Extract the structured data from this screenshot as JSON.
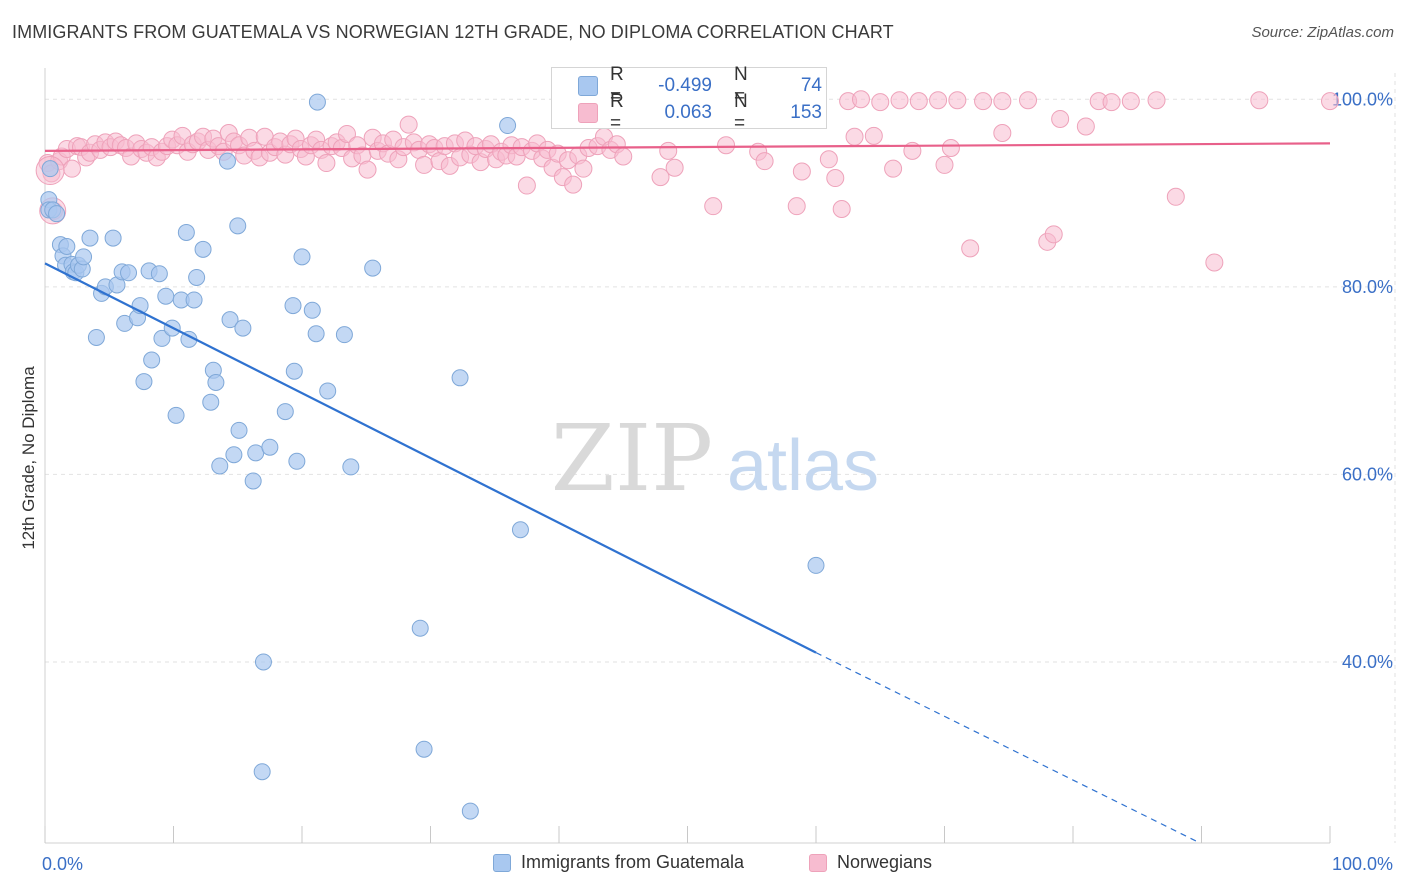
{
  "header": {
    "title": "IMMIGRANTS FROM GUATEMALA VS NORWEGIAN 12TH GRADE, NO DIPLOMA CORRELATION CHART",
    "source": "Source: ZipAtlas.com"
  },
  "watermark": {
    "zip": "ZIP",
    "atlas": "atlas"
  },
  "stats": {
    "series1": {
      "r_label": "R =",
      "r_value": "-0.499",
      "n_label": "N =",
      "n_value": "74"
    },
    "series2": {
      "r_label": "R =",
      "r_value": "0.063",
      "n_label": "N =",
      "n_value": "153"
    }
  },
  "legend": {
    "series1": "Immigrants from Guatemala",
    "series2": "Norwegians"
  },
  "colors": {
    "blue_fill": "#a9c8f0",
    "blue_stroke": "#7fa8d8",
    "blue_line": "#2f72d0",
    "pink_fill": "#f7bcd0",
    "pink_stroke": "#eea2ba",
    "pink_line": "#e8608a",
    "tick_label": "#3a6fc6",
    "grid": "#e2e2e2"
  },
  "chart_data": {
    "type": "scatter",
    "title": "IMMIGRANTS FROM GUATEMALA VS NORWEGIAN 12TH GRADE, NO DIPLOMA CORRELATION CHART",
    "xlabel": "",
    "ylabel": "12th Grade, No Diploma",
    "xlim": [
      0,
      100
    ],
    "ylim": [
      20.7,
      102.8
    ],
    "x_tick_labels": [
      {
        "value": 0,
        "label": "0.0%"
      },
      {
        "value": 100,
        "label": "100.0%"
      }
    ],
    "y_tick_labels": [
      {
        "value": 40,
        "label": "40.0%"
      },
      {
        "value": 60,
        "label": "60.0%"
      },
      {
        "value": 80,
        "label": "80.0%"
      },
      {
        "value": 100,
        "label": "100.0%"
      }
    ],
    "grid": true,
    "legend_position": "bottom",
    "series": [
      {
        "name": "Immigrants from Guatemala",
        "color": "#a9c8f0",
        "trend": {
          "x": [
            0,
            60
          ],
          "y": [
            82.5,
            41.0
          ],
          "dashed_to": [
            100,
            20.7
          ]
        },
        "points": [
          [
            0.3,
            89.3
          ],
          [
            0.3,
            88.2
          ],
          [
            0.4,
            92.6
          ],
          [
            0.6,
            88.2
          ],
          [
            0.9,
            87.8
          ],
          [
            1.2,
            84.5
          ],
          [
            1.4,
            83.3
          ],
          [
            1.6,
            82.3
          ],
          [
            1.7,
            84.3
          ],
          [
            2.1,
            82.4
          ],
          [
            2.2,
            81.6
          ],
          [
            2.4,
            81.5
          ],
          [
            2.6,
            82.3
          ],
          [
            2.9,
            81.9
          ],
          [
            3.0,
            83.2
          ],
          [
            3.5,
            85.2
          ],
          [
            4.0,
            74.6
          ],
          [
            4.4,
            79.3
          ],
          [
            4.7,
            80.0
          ],
          [
            5.3,
            85.2
          ],
          [
            5.6,
            80.2
          ],
          [
            6.0,
            81.6
          ],
          [
            6.2,
            76.1
          ],
          [
            6.5,
            81.5
          ],
          [
            7.2,
            76.7
          ],
          [
            7.4,
            78.0
          ],
          [
            7.7,
            69.9
          ],
          [
            8.1,
            81.7
          ],
          [
            8.3,
            72.2
          ],
          [
            8.9,
            81.4
          ],
          [
            9.1,
            74.5
          ],
          [
            9.4,
            79.0
          ],
          [
            9.9,
            75.6
          ],
          [
            10.2,
            66.3
          ],
          [
            10.6,
            78.6
          ],
          [
            11.0,
            85.8
          ],
          [
            11.2,
            74.4
          ],
          [
            11.6,
            78.6
          ],
          [
            11.8,
            81.0
          ],
          [
            12.3,
            84.0
          ],
          [
            12.9,
            67.7
          ],
          [
            13.1,
            71.1
          ],
          [
            13.3,
            69.8
          ],
          [
            13.6,
            60.9
          ],
          [
            14.2,
            93.4
          ],
          [
            14.4,
            76.5
          ],
          [
            14.7,
            62.1
          ],
          [
            15.0,
            86.5
          ],
          [
            15.1,
            64.7
          ],
          [
            15.4,
            75.6
          ],
          [
            16.2,
            59.3
          ],
          [
            16.4,
            62.3
          ],
          [
            17.0,
            40.0
          ],
          [
            16.9,
            28.3
          ],
          [
            17.5,
            62.9
          ],
          [
            18.7,
            66.7
          ],
          [
            19.3,
            78.0
          ],
          [
            19.4,
            71.0
          ],
          [
            19.6,
            61.4
          ],
          [
            20.0,
            83.2
          ],
          [
            20.8,
            77.5
          ],
          [
            21.1,
            75.0
          ],
          [
            21.2,
            99.7
          ],
          [
            22.0,
            68.9
          ],
          [
            23.3,
            74.9
          ],
          [
            23.8,
            60.8
          ],
          [
            25.5,
            82.0
          ],
          [
            29.2,
            43.6
          ],
          [
            29.5,
            30.7
          ],
          [
            32.3,
            70.3
          ],
          [
            33.1,
            24.1
          ],
          [
            36.0,
            97.2
          ],
          [
            37.0,
            54.1
          ],
          [
            60.0,
            50.3
          ]
        ]
      },
      {
        "name": "Norwegians",
        "color": "#f7bcd0",
        "trend": {
          "x": [
            0,
            100
          ],
          "y": [
            94.5,
            95.3
          ]
        },
        "points": [
          [
            0.2,
            93.2
          ],
          [
            0.5,
            92.1
          ],
          [
            0.7,
            88.1
          ],
          [
            1.1,
            93.4
          ],
          [
            1.3,
            93.9
          ],
          [
            1.7,
            94.7
          ],
          [
            2.1,
            92.6
          ],
          [
            2.5,
            95.0
          ],
          [
            2.8,
            94.9
          ],
          [
            3.2,
            93.8
          ],
          [
            3.5,
            94.3
          ],
          [
            3.9,
            95.2
          ],
          [
            4.3,
            94.6
          ],
          [
            4.7,
            95.4
          ],
          [
            5.1,
            94.9
          ],
          [
            5.5,
            95.5
          ],
          [
            5.9,
            95.1
          ],
          [
            6.3,
            94.8
          ],
          [
            6.7,
            93.9
          ],
          [
            7.1,
            95.3
          ],
          [
            7.5,
            94.7
          ],
          [
            7.9,
            94.3
          ],
          [
            8.3,
            94.9
          ],
          [
            8.7,
            93.8
          ],
          [
            9.1,
            94.4
          ],
          [
            9.5,
            95.0
          ],
          [
            9.9,
            95.7
          ],
          [
            10.3,
            95.1
          ],
          [
            10.7,
            96.1
          ],
          [
            11.1,
            94.4
          ],
          [
            11.5,
            95.2
          ],
          [
            11.9,
            95.5
          ],
          [
            12.3,
            96.0
          ],
          [
            12.7,
            94.6
          ],
          [
            13.1,
            95.8
          ],
          [
            13.5,
            95.0
          ],
          [
            13.9,
            94.4
          ],
          [
            14.3,
            96.4
          ],
          [
            14.7,
            95.5
          ],
          [
            15.1,
            95.1
          ],
          [
            15.5,
            94.0
          ],
          [
            15.9,
            95.9
          ],
          [
            16.3,
            94.5
          ],
          [
            16.7,
            93.8
          ],
          [
            17.1,
            96.0
          ],
          [
            17.5,
            94.3
          ],
          [
            17.9,
            94.9
          ],
          [
            18.3,
            95.5
          ],
          [
            18.7,
            94.1
          ],
          [
            19.1,
            95.2
          ],
          [
            19.5,
            95.8
          ],
          [
            19.9,
            94.7
          ],
          [
            20.3,
            93.9
          ],
          [
            20.7,
            95.1
          ],
          [
            21.1,
            95.7
          ],
          [
            21.5,
            94.6
          ],
          [
            21.9,
            93.2
          ],
          [
            22.3,
            95.0
          ],
          [
            22.7,
            95.4
          ],
          [
            23.1,
            94.8
          ],
          [
            23.5,
            96.3
          ],
          [
            23.9,
            93.7
          ],
          [
            24.3,
            95.1
          ],
          [
            24.7,
            94.0
          ],
          [
            25.1,
            92.5
          ],
          [
            25.5,
            95.9
          ],
          [
            25.9,
            94.5
          ],
          [
            26.3,
            95.3
          ],
          [
            26.7,
            94.2
          ],
          [
            27.1,
            95.7
          ],
          [
            27.5,
            93.6
          ],
          [
            27.9,
            94.9
          ],
          [
            28.3,
            97.3
          ],
          [
            28.7,
            95.4
          ],
          [
            29.1,
            94.6
          ],
          [
            29.5,
            93.0
          ],
          [
            29.9,
            95.2
          ],
          [
            30.3,
            94.8
          ],
          [
            30.7,
            93.4
          ],
          [
            31.1,
            95.0
          ],
          [
            31.5,
            92.9
          ],
          [
            31.9,
            95.3
          ],
          [
            32.3,
            93.8
          ],
          [
            32.7,
            95.6
          ],
          [
            33.1,
            94.1
          ],
          [
            33.5,
            95.0
          ],
          [
            33.9,
            93.3
          ],
          [
            34.3,
            94.7
          ],
          [
            34.7,
            95.2
          ],
          [
            35.1,
            93.6
          ],
          [
            35.5,
            94.4
          ],
          [
            35.9,
            94.0
          ],
          [
            36.3,
            95.1
          ],
          [
            36.7,
            93.9
          ],
          [
            37.1,
            94.9
          ],
          [
            37.5,
            90.8
          ],
          [
            37.9,
            94.5
          ],
          [
            38.3,
            95.3
          ],
          [
            38.7,
            93.7
          ],
          [
            39.1,
            94.6
          ],
          [
            39.5,
            92.7
          ],
          [
            39.9,
            94.2
          ],
          [
            40.3,
            91.7
          ],
          [
            40.7,
            93.5
          ],
          [
            41.1,
            90.9
          ],
          [
            41.5,
            94.0
          ],
          [
            41.9,
            92.6
          ],
          [
            42.3,
            94.8
          ],
          [
            43.0,
            95.0
          ],
          [
            43.5,
            96.0
          ],
          [
            44.0,
            94.6
          ],
          [
            44.5,
            95.2
          ],
          [
            45.0,
            93.9
          ],
          [
            46.0,
            99.8
          ],
          [
            47.5,
            99.9
          ],
          [
            47.9,
            91.7
          ],
          [
            48.5,
            94.5
          ],
          [
            49.0,
            92.7
          ],
          [
            50.0,
            99.7
          ],
          [
            52.0,
            88.6
          ],
          [
            53.0,
            95.1
          ],
          [
            53.5,
            99.8
          ],
          [
            55.5,
            94.4
          ],
          [
            56.0,
            93.4
          ],
          [
            57.0,
            99.9
          ],
          [
            58.5,
            88.6
          ],
          [
            58.9,
            92.3
          ],
          [
            60.0,
            99.9
          ],
          [
            61.0,
            93.6
          ],
          [
            61.5,
            91.6
          ],
          [
            62.0,
            88.3
          ],
          [
            62.5,
            99.8
          ],
          [
            63.0,
            96.0
          ],
          [
            63.5,
            100.0
          ],
          [
            64.5,
            96.1
          ],
          [
            65.0,
            99.7
          ],
          [
            66.0,
            92.6
          ],
          [
            66.5,
            99.9
          ],
          [
            67.5,
            94.5
          ],
          [
            68.0,
            99.8
          ],
          [
            69.5,
            99.9
          ],
          [
            70.0,
            93.0
          ],
          [
            70.5,
            94.8
          ],
          [
            71.0,
            99.9
          ],
          [
            72.0,
            84.1
          ],
          [
            73.0,
            99.8
          ],
          [
            74.5,
            96.4
          ],
          [
            74.5,
            99.8
          ],
          [
            76.5,
            99.9
          ],
          [
            78.0,
            84.8
          ],
          [
            78.5,
            85.6
          ],
          [
            79.0,
            97.9
          ],
          [
            81.0,
            97.1
          ],
          [
            82.0,
            99.8
          ],
          [
            83.0,
            99.7
          ],
          [
            84.5,
            99.8
          ],
          [
            86.5,
            99.9
          ],
          [
            88.0,
            89.6
          ],
          [
            91.0,
            82.6
          ],
          [
            94.5,
            99.9
          ],
          [
            100.0,
            99.8
          ]
        ]
      }
    ]
  }
}
